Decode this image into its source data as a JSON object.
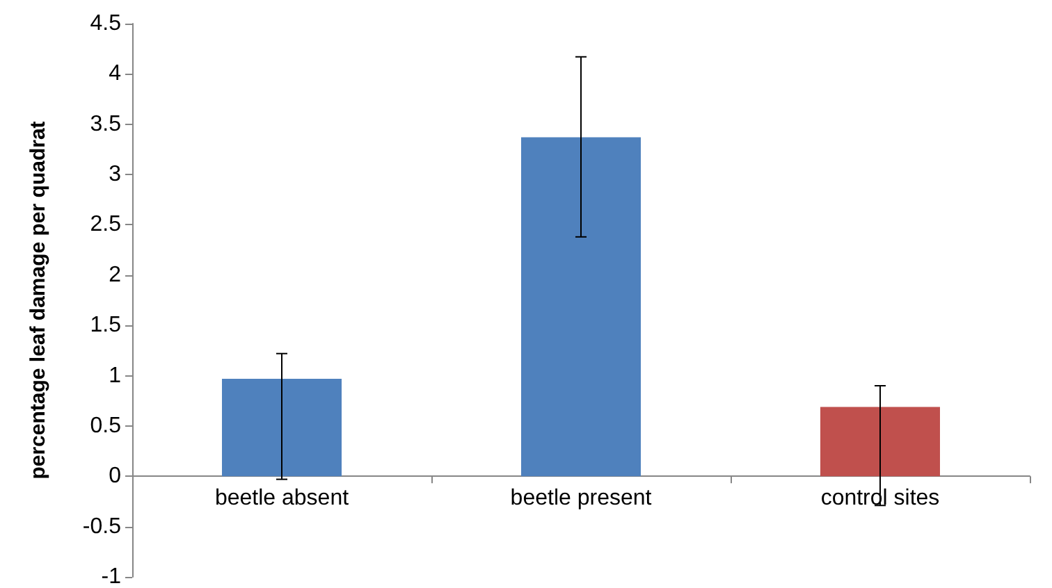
{
  "chart_data": {
    "type": "bar",
    "ylabel": "percentage leaf damage per quadrat",
    "categories": [
      "beetle absent",
      "beetle present",
      "control sites"
    ],
    "values": [
      0.97,
      3.37,
      0.69
    ],
    "colors": [
      "#4f81bd",
      "#4f81bd",
      "#c0504d"
    ],
    "errors": [
      [
        -0.03,
        1.22
      ],
      [
        2.38,
        4.17
      ],
      [
        -0.29,
        0.9
      ]
    ],
    "ylim": [
      -1,
      4.5
    ],
    "yticks": [
      -1,
      -0.5,
      0,
      0.5,
      1,
      1.5,
      2,
      2.5,
      3,
      3.5,
      4,
      4.5
    ]
  }
}
